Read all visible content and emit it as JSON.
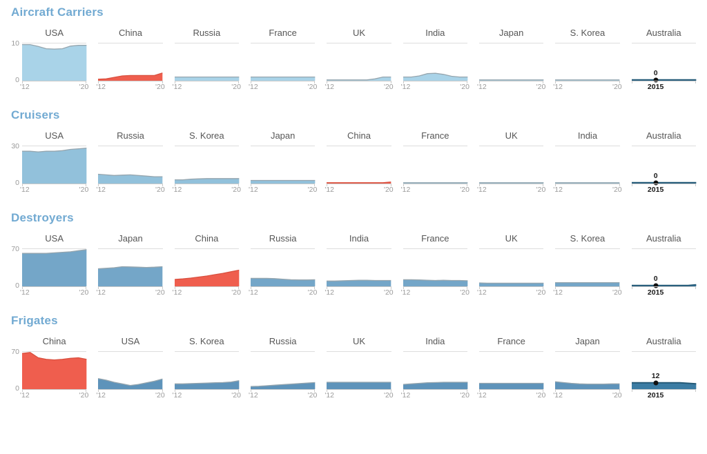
{
  "palette": {
    "title_blue": "#72aad2",
    "row_blues": [
      "#a9d3e8",
      "#92c1db",
      "#74a6c8",
      "#5e93ba"
    ],
    "blue_stroke": "#95a5ae",
    "red_fill": "#ef5e4e",
    "red_stroke": "#d9503f",
    "highlight_fill": "#3b7ca3",
    "highlight_stroke": "#255a77",
    "grid_line": "#dddddd",
    "axis_line": "#c9c9c9",
    "marker_dot": "#111111"
  },
  "axis": {
    "start_label": "'12",
    "end_label": "'20",
    "marker_year": "2015"
  },
  "chart_data": [
    {
      "title": "Aircraft Carriers",
      "type": "area",
      "x_range": [
        2012,
        2020
      ],
      "ymax": 10,
      "y_ticks": [
        "10",
        "0"
      ],
      "series": [
        {
          "name": "USA",
          "color": "blue",
          "values": [
            9.7,
            9.7,
            9.2,
            8.6,
            8.5,
            8.6,
            9.3,
            9.5,
            9.5
          ]
        },
        {
          "name": "China",
          "color": "red",
          "values": [
            0.4,
            0.5,
            0.9,
            1.3,
            1.4,
            1.4,
            1.4,
            1.4,
            2.1
          ]
        },
        {
          "name": "Russia",
          "color": "blue",
          "values": [
            1,
            1,
            1,
            1,
            1,
            1,
            1,
            1,
            1
          ]
        },
        {
          "name": "France",
          "color": "blue",
          "values": [
            1,
            1,
            1,
            1,
            1,
            1,
            1,
            1,
            1
          ]
        },
        {
          "name": "UK",
          "color": "blue",
          "values": [
            0.15,
            0.15,
            0.15,
            0.15,
            0.15,
            0.2,
            0.5,
            1,
            1
          ]
        },
        {
          "name": "India",
          "color": "blue",
          "values": [
            1,
            1,
            1.3,
            1.9,
            2,
            1.7,
            1.2,
            1,
            1
          ]
        },
        {
          "name": "Japan",
          "color": "blue",
          "values": [
            0,
            0,
            0,
            0,
            0,
            0,
            0,
            0,
            0
          ]
        },
        {
          "name": "S. Korea",
          "color": "blue",
          "values": [
            0,
            0,
            0,
            0,
            0,
            0,
            0,
            0,
            0
          ]
        },
        {
          "name": "Australia",
          "color": "highlight",
          "values": [
            0,
            0,
            0,
            0,
            0,
            0,
            0,
            0,
            0
          ]
        }
      ],
      "marker": {
        "country": "Australia",
        "year": "2015",
        "value_label": "0",
        "value": 0
      }
    },
    {
      "title": "Cruisers",
      "type": "area",
      "x_range": [
        2012,
        2020
      ],
      "ymax": 30,
      "y_ticks": [
        "30",
        "0"
      ],
      "series": [
        {
          "name": "USA",
          "color": "blue",
          "values": [
            26,
            26,
            25.5,
            26,
            26,
            26.5,
            27.5,
            28,
            28.5
          ]
        },
        {
          "name": "Russia",
          "color": "blue",
          "values": [
            7.5,
            7,
            6.5,
            6.8,
            7,
            6.5,
            6,
            5.5,
            5.5
          ]
        },
        {
          "name": "S. Korea",
          "color": "blue",
          "values": [
            3,
            3,
            3.5,
            3.8,
            4,
            4,
            4,
            4,
            4
          ]
        },
        {
          "name": "Japan",
          "color": "blue",
          "values": [
            2.5,
            2.5,
            2.5,
            2.5,
            2.5,
            2.5,
            2.5,
            2.5,
            2.5
          ]
        },
        {
          "name": "China",
          "color": "red",
          "values": [
            0.4,
            0.4,
            0.4,
            0.4,
            0.4,
            0.4,
            0.4,
            0.6,
            1.2
          ]
        },
        {
          "name": "France",
          "color": "blue",
          "values": [
            0,
            0,
            0,
            0,
            0,
            0,
            0,
            0,
            0
          ]
        },
        {
          "name": "UK",
          "color": "blue",
          "values": [
            0,
            0,
            0,
            0,
            0,
            0,
            0,
            0,
            0
          ]
        },
        {
          "name": "India",
          "color": "blue",
          "values": [
            0,
            0,
            0,
            0,
            0,
            0,
            0,
            0,
            0
          ]
        },
        {
          "name": "Australia",
          "color": "highlight",
          "values": [
            0,
            0,
            0,
            0,
            0,
            0,
            0,
            0,
            0
          ]
        }
      ],
      "marker": {
        "country": "Australia",
        "year": "2015",
        "value_label": "0",
        "value": 0
      }
    },
    {
      "title": "Destroyers",
      "type": "area",
      "x_range": [
        2012,
        2020
      ],
      "ymax": 70,
      "y_ticks": [
        "70",
        "0"
      ],
      "series": [
        {
          "name": "USA",
          "color": "blue",
          "values": [
            62,
            62,
            62,
            62,
            63,
            64,
            65,
            67,
            69
          ]
        },
        {
          "name": "Japan",
          "color": "blue",
          "values": [
            33,
            34,
            35,
            37,
            36.5,
            36,
            35.5,
            36,
            37
          ]
        },
        {
          "name": "China",
          "color": "red",
          "values": [
            13,
            14,
            15.5,
            17.5,
            19.5,
            22,
            24.5,
            27.5,
            30.5
          ]
        },
        {
          "name": "Russia",
          "color": "blue",
          "values": [
            15,
            15,
            15,
            14.5,
            13.5,
            12.5,
            12,
            12,
            12.5
          ]
        },
        {
          "name": "India",
          "color": "blue",
          "values": [
            10,
            10,
            10.5,
            11,
            11.5,
            11.5,
            11,
            11,
            11
          ]
        },
        {
          "name": "France",
          "color": "blue",
          "values": [
            12.5,
            12.5,
            12,
            11.5,
            11,
            11.5,
            11,
            11,
            10.5
          ]
        },
        {
          "name": "UK",
          "color": "blue",
          "values": [
            6.5,
            6,
            6,
            6,
            6,
            6,
            6,
            6,
            6
          ]
        },
        {
          "name": "S. Korea",
          "color": "blue",
          "values": [
            7,
            7,
            7,
            7,
            7,
            7,
            7,
            7,
            7
          ]
        },
        {
          "name": "Australia",
          "color": "highlight",
          "values": [
            0,
            0,
            0,
            0,
            0,
            0,
            0.5,
            1.5,
            3
          ]
        }
      ],
      "marker": {
        "country": "Australia",
        "year": "2015",
        "value_label": "0",
        "value": 0
      }
    },
    {
      "title": "Frigates",
      "type": "area",
      "x_range": [
        2012,
        2020
      ],
      "ymax": 70,
      "y_ticks": [
        "70",
        "0"
      ],
      "series": [
        {
          "name": "China",
          "color": "red",
          "values": [
            67,
            69,
            59,
            56,
            55,
            56,
            58,
            59,
            56
          ]
        },
        {
          "name": "USA",
          "color": "blue",
          "values": [
            20,
            17,
            13,
            10,
            7,
            9,
            12,
            15,
            19
          ]
        },
        {
          "name": "S. Korea",
          "color": "blue",
          "values": [
            10,
            10,
            10.5,
            11,
            11.5,
            12,
            12.5,
            13.5,
            16
          ]
        },
        {
          "name": "Russia",
          "color": "blue",
          "values": [
            5,
            5.5,
            6.5,
            7.5,
            8.5,
            9.5,
            10.5,
            11.5,
            12.5
          ]
        },
        {
          "name": "UK",
          "color": "blue",
          "values": [
            13,
            13,
            13,
            13,
            13,
            13,
            13,
            13,
            13
          ]
        },
        {
          "name": "India",
          "color": "blue",
          "values": [
            9,
            10,
            11,
            12,
            12.5,
            13,
            13,
            13,
            13
          ]
        },
        {
          "name": "France",
          "color": "blue",
          "values": [
            11,
            11,
            11,
            11,
            11,
            11,
            11,
            11,
            11
          ]
        },
        {
          "name": "Japan",
          "color": "blue",
          "values": [
            14,
            12.5,
            11,
            10,
            9.5,
            9.5,
            9.5,
            10,
            10
          ]
        },
        {
          "name": "Australia",
          "color": "highlight",
          "values": [
            12,
            12,
            12,
            12,
            12,
            12,
            12,
            11,
            10
          ]
        }
      ],
      "marker": {
        "country": "Australia",
        "year": "2015",
        "value_label": "12",
        "value": 12
      }
    }
  ]
}
